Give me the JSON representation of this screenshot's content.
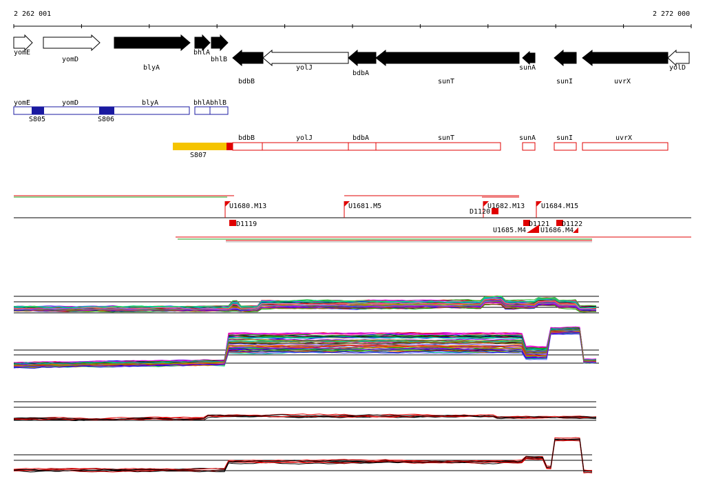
{
  "ruler": {
    "start_label": "2 262 001",
    "end_label": "2 272 000"
  },
  "colors": {
    "gene_fill": "#000000",
    "gene_outline_only": "#ffffff",
    "transcript_blue": "#1a1aa0",
    "transcript_red": "#e00000",
    "promoter_yellow": "#f5c400",
    "axis": "#000000"
  },
  "genes": [
    {
      "name": "yomE",
      "strand": "+",
      "filled": false
    },
    {
      "name": "yomD",
      "strand": "+",
      "filled": false
    },
    {
      "name": "blyA",
      "strand": "+",
      "filled": true
    },
    {
      "name": "bhlA",
      "strand": "+",
      "filled": true
    },
    {
      "name": "bhlB",
      "strand": "+",
      "filled": true
    },
    {
      "name": "bdbB",
      "strand": "-",
      "filled": true
    },
    {
      "name": "yolJ",
      "strand": "-",
      "filled": false
    },
    {
      "name": "bdbA",
      "strand": "-",
      "filled": true
    },
    {
      "name": "sunT",
      "strand": "-",
      "filled": true
    },
    {
      "name": "sunA",
      "strand": "-",
      "filled": true
    },
    {
      "name": "sunI",
      "strand": "-",
      "filled": true
    },
    {
      "name": "uvrX",
      "strand": "-",
      "filled": true
    },
    {
      "name": "yolD",
      "strand": "-",
      "filled": false
    }
  ],
  "transcripts_forward": {
    "labels": [
      "yomE",
      "yomD",
      "blyA",
      "bhlA",
      "bhlB"
    ],
    "sites": [
      "S805",
      "S806"
    ]
  },
  "transcripts_reverse": {
    "labels": [
      "bdbB",
      "yolJ",
      "bdbA",
      "sunT",
      "sunA",
      "sunI",
      "uvrX"
    ],
    "promoter": "S807"
  },
  "features_upper": [
    "U1680.M13",
    "U1681.M5",
    "U1682.M13",
    "U1684.M15",
    "D1120"
  ],
  "features_lower": [
    "D1119",
    "D1121",
    "D1122",
    "U1686.M4",
    "U1685.M4"
  ]
}
